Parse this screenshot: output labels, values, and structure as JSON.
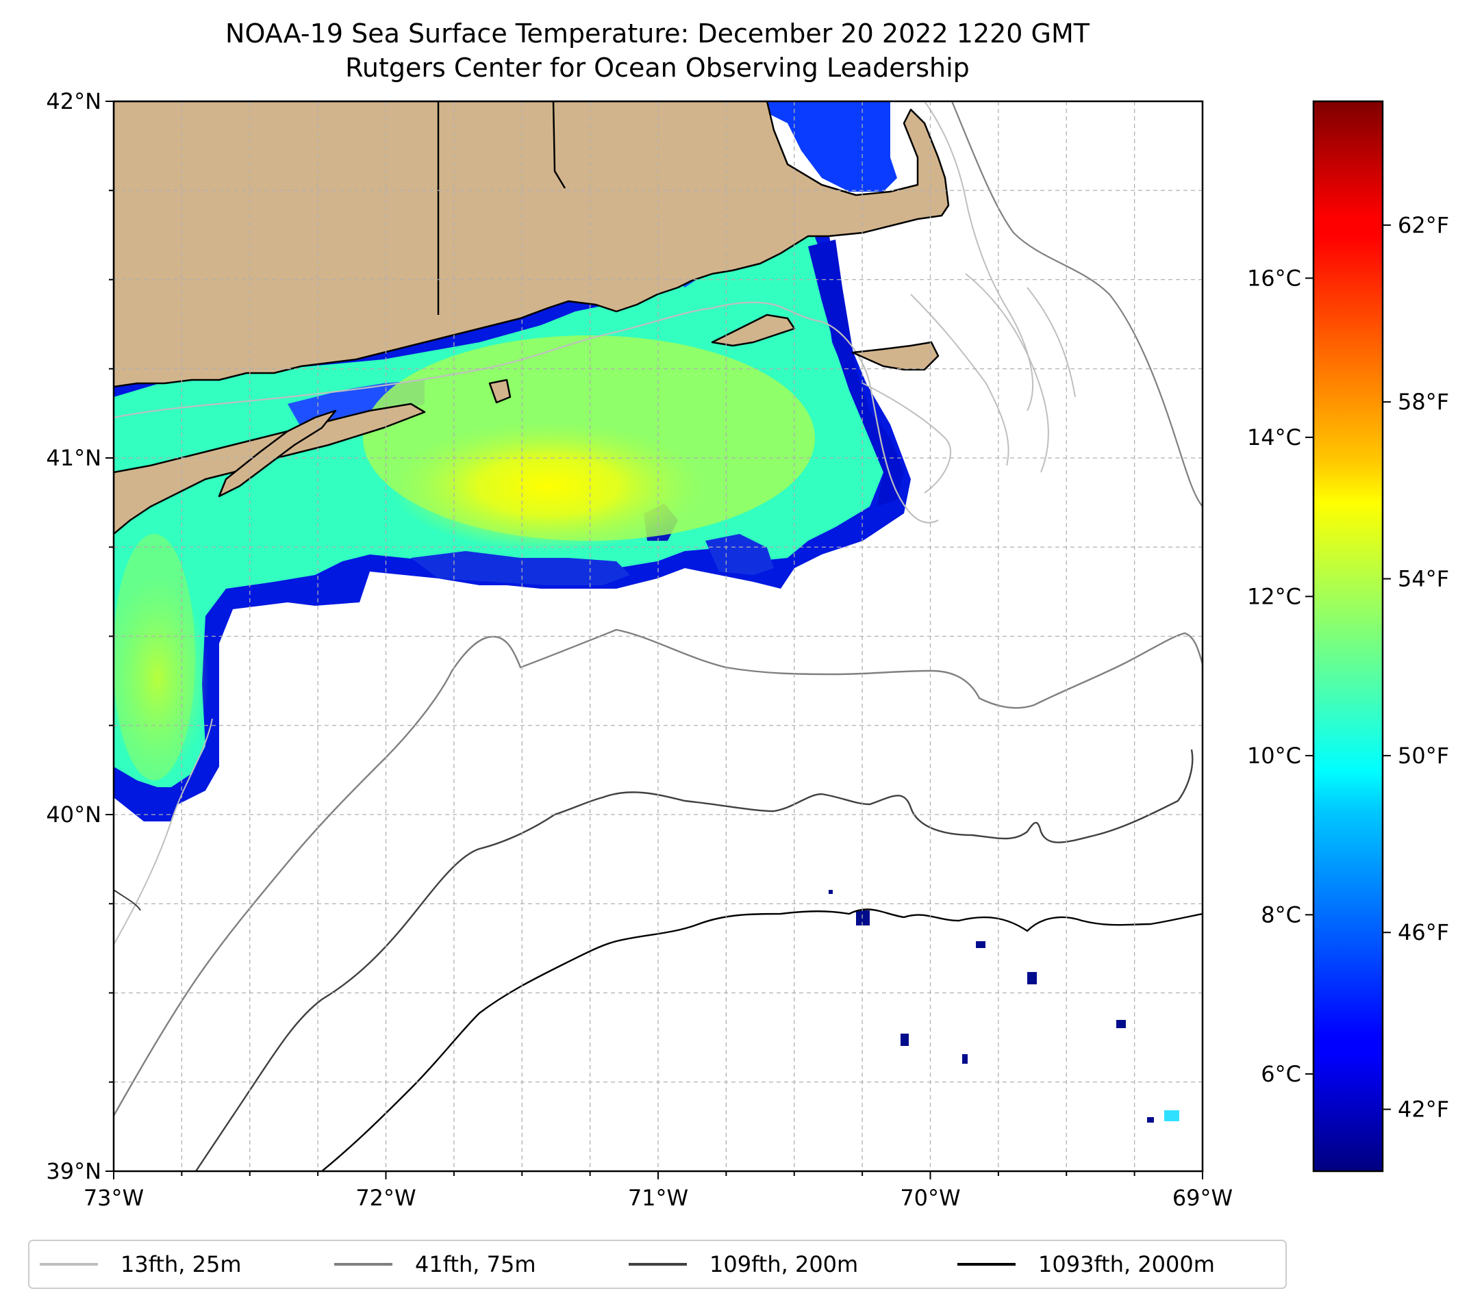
{
  "title": {
    "line1": "NOAA-19 Sea Surface Temperature: December 20 2022 1220 GMT",
    "line2": "Rutgers Center for Ocean Observing Leadership"
  },
  "map": {
    "lon_range": [
      -73,
      -69
    ],
    "lat_range": [
      39,
      42
    ],
    "x_ticks": [
      {
        "lon": -73,
        "label": "73°W"
      },
      {
        "lon": -72,
        "label": "72°W"
      },
      {
        "lon": -71,
        "label": "71°W"
      },
      {
        "lon": -70,
        "label": "70°W"
      },
      {
        "lon": -69,
        "label": "69°W"
      }
    ],
    "y_ticks": [
      {
        "lat": 42,
        "label": "42°N"
      },
      {
        "lat": 41,
        "label": "41°N"
      },
      {
        "lat": 40,
        "label": "40°N"
      },
      {
        "lat": 39,
        "label": "39°N"
      }
    ],
    "grid": true,
    "land_color": "#d2b48c"
  },
  "colorbar": {
    "colormap": "jet",
    "range_f": [
      40.6,
      64.8
    ],
    "celsius_ticks": [
      {
        "value": 6,
        "label": "6°C"
      },
      {
        "value": 8,
        "label": "8°C"
      },
      {
        "value": 10,
        "label": "10°C"
      },
      {
        "value": 12,
        "label": "12°C"
      },
      {
        "value": 14,
        "label": "14°C"
      },
      {
        "value": 16,
        "label": "16°C"
      }
    ],
    "fahrenheit_ticks": [
      {
        "value": 42,
        "label": "42°F"
      },
      {
        "value": 46,
        "label": "46°F"
      },
      {
        "value": 50,
        "label": "50°F"
      },
      {
        "value": 54,
        "label": "54°F"
      },
      {
        "value": 58,
        "label": "58°F"
      },
      {
        "value": 62,
        "label": "62°F"
      }
    ]
  },
  "legend": {
    "placement": "bottom",
    "entries": [
      {
        "label": "13fth, 25m",
        "color": "#bfbfbf"
      },
      {
        "label": "41fth, 75m",
        "color": "#808080"
      },
      {
        "label": "109fth, 200m",
        "color": "#404040"
      },
      {
        "label": "1093fth, 2000m",
        "color": "#000000"
      }
    ]
  }
}
